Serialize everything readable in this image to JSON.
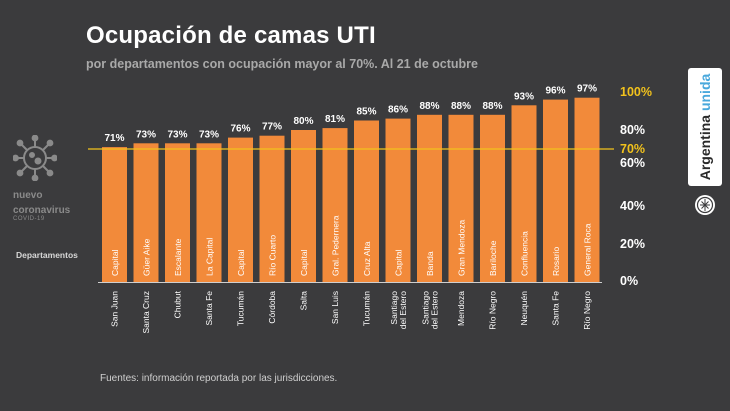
{
  "header": {
    "title": "Ocupación de camas UTI",
    "subtitle": "por departamentos con ocupación mayor al 70%. Al 21 de octubre"
  },
  "branding": {
    "campaign_line1": "nuevo",
    "campaign_line2": "coronavirus",
    "campaign_tag": "COVID-19",
    "logo_word1": "Argentina",
    "logo_word2": "unida"
  },
  "axis": {
    "category_title": "Departamentos"
  },
  "footer": {
    "source": "Fuentes: información reportada por las jurisdicciones."
  },
  "colors": {
    "background": "#3b3b3d",
    "bar": "#f28a3a",
    "threshold_line": "#f2c21c",
    "threshold_label": "#f2c21c",
    "top_tick": "#f2c21c"
  },
  "chart_data": {
    "type": "bar",
    "title": "Ocupación de camas UTI",
    "subtitle": "por departamentos con ocupación mayor al 70%. Al 21 de octubre",
    "xlabel": "Departamentos",
    "ylabel": "",
    "ylim": [
      0,
      100
    ],
    "y_ticks": [
      "0%",
      "20%",
      "40%",
      "60%",
      "70%",
      "80%",
      "100%"
    ],
    "y_tick_values": [
      0,
      20,
      40,
      60,
      70,
      80,
      100
    ],
    "threshold": 70,
    "threshold_label": "70%",
    "grid": false,
    "categories": [
      "Capital",
      "Güer Aike",
      "Escalante",
      "La Capital",
      "Capital",
      "Río Cuarto",
      "Capital",
      "Gral. Pedernera",
      "Cruz Alta",
      "Capital",
      "Banda",
      "Gran Mendoza",
      "Bariloche",
      "Confluencia",
      "Rosario",
      "General Roca"
    ],
    "provinces": [
      "San Juan",
      "Santa Cruz",
      "Chubut",
      "Santa Fe",
      "Tucumán",
      "Córdoba",
      "Salta",
      "San Luis",
      "Tucumán",
      "Santiago del Estero",
      "Santiago del Estero",
      "Mendoza",
      "Río Negro",
      "Neuquén",
      "Santa Fe",
      "Río Negro"
    ],
    "values": [
      71,
      73,
      73,
      73,
      76,
      77,
      80,
      81,
      85,
      86,
      88,
      88,
      88,
      93,
      96,
      97
    ],
    "value_labels": [
      "71%",
      "73%",
      "73%",
      "73%",
      "76%",
      "77%",
      "80%",
      "81%",
      "85%",
      "86%",
      "88%",
      "88%",
      "88%",
      "93%",
      "96%",
      "97%"
    ]
  }
}
